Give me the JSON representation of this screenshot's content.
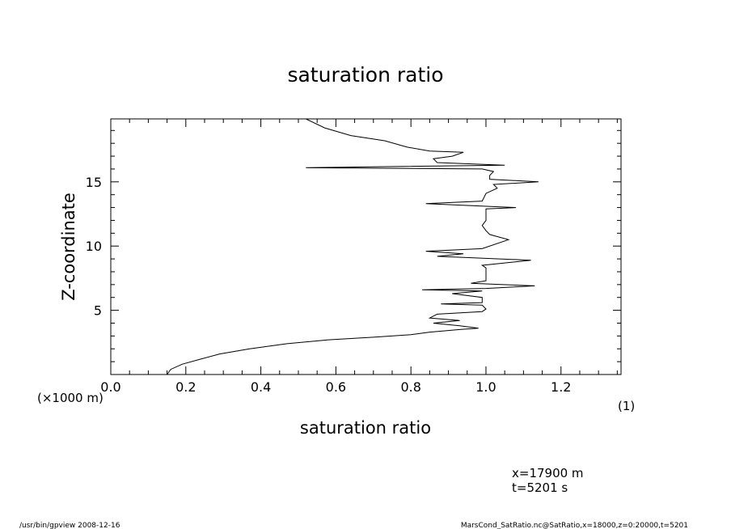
{
  "chart_data": {
    "type": "line",
    "title": "saturation ratio",
    "xlabel": "saturation ratio",
    "ylabel": "Z-coordinate",
    "x_unit_label": "(1)",
    "y_unit_label": "(×1000 m)",
    "xlim": [
      0.0,
      1.36
    ],
    "ylim": [
      0.0,
      19.9
    ],
    "x_ticks": [
      "0.0",
      "0.2",
      "0.4",
      "0.6",
      "0.8",
      "1.0",
      "1.2"
    ],
    "y_ticks": [
      "5",
      "10",
      "15"
    ],
    "grid": false,
    "series": [
      {
        "points": [
          [
            0.15,
            0.0
          ],
          [
            0.16,
            0.4
          ],
          [
            0.19,
            0.8
          ],
          [
            0.24,
            1.2
          ],
          [
            0.29,
            1.6
          ],
          [
            0.37,
            2.0
          ],
          [
            0.47,
            2.4
          ],
          [
            0.58,
            2.7
          ],
          [
            0.7,
            2.9
          ],
          [
            0.8,
            3.1
          ],
          [
            0.85,
            3.3
          ],
          [
            0.93,
            3.5
          ],
          [
            0.98,
            3.6
          ],
          [
            0.93,
            3.8
          ],
          [
            0.86,
            4.0
          ],
          [
            0.93,
            4.2
          ],
          [
            0.85,
            4.4
          ],
          [
            0.87,
            4.7
          ],
          [
            0.99,
            4.9
          ],
          [
            1.0,
            5.1
          ],
          [
            0.99,
            5.4
          ],
          [
            0.88,
            5.5
          ],
          [
            0.99,
            5.6
          ],
          [
            0.99,
            6.0
          ],
          [
            0.91,
            6.3
          ],
          [
            0.99,
            6.5
          ],
          [
            0.83,
            6.6
          ],
          [
            1.0,
            6.7
          ],
          [
            1.13,
            6.9
          ],
          [
            0.96,
            7.1
          ],
          [
            1.0,
            7.3
          ],
          [
            1.0,
            7.8
          ],
          [
            1.0,
            8.3
          ],
          [
            0.99,
            8.5
          ],
          [
            1.12,
            8.9
          ],
          [
            0.87,
            9.2
          ],
          [
            0.94,
            9.4
          ],
          [
            0.84,
            9.6
          ],
          [
            0.99,
            9.8
          ],
          [
            1.06,
            10.5
          ],
          [
            1.01,
            10.9
          ],
          [
            1.0,
            11.2
          ],
          [
            0.99,
            11.6
          ],
          [
            1.0,
            12.0
          ],
          [
            1.0,
            12.5
          ],
          [
            1.0,
            12.9
          ],
          [
            1.08,
            13.0
          ],
          [
            0.84,
            13.3
          ],
          [
            0.99,
            13.5
          ],
          [
            1.0,
            14.1
          ],
          [
            1.03,
            14.5
          ],
          [
            1.02,
            14.8
          ],
          [
            1.14,
            15.0
          ],
          [
            1.01,
            15.2
          ],
          [
            1.01,
            15.5
          ],
          [
            1.02,
            15.8
          ],
          [
            0.99,
            16.0
          ],
          [
            0.52,
            16.1
          ],
          [
            1.05,
            16.3
          ],
          [
            0.87,
            16.5
          ],
          [
            0.86,
            16.8
          ],
          [
            0.91,
            17.0
          ],
          [
            0.94,
            17.3
          ],
          [
            0.85,
            17.4
          ],
          [
            0.79,
            17.7
          ],
          [
            0.73,
            18.2
          ],
          [
            0.64,
            18.6
          ],
          [
            0.57,
            19.2
          ],
          [
            0.52,
            19.9
          ]
        ]
      }
    ]
  },
  "annotations": {
    "coord_x": "x=17900 m",
    "coord_t": "t=5201 s",
    "footer_left": "/usr/bin/gpview  2008-12-16",
    "footer_right": "MarsCond_SatRatio.nc@SatRatio,x=18000,z=0:20000,t=5201"
  }
}
